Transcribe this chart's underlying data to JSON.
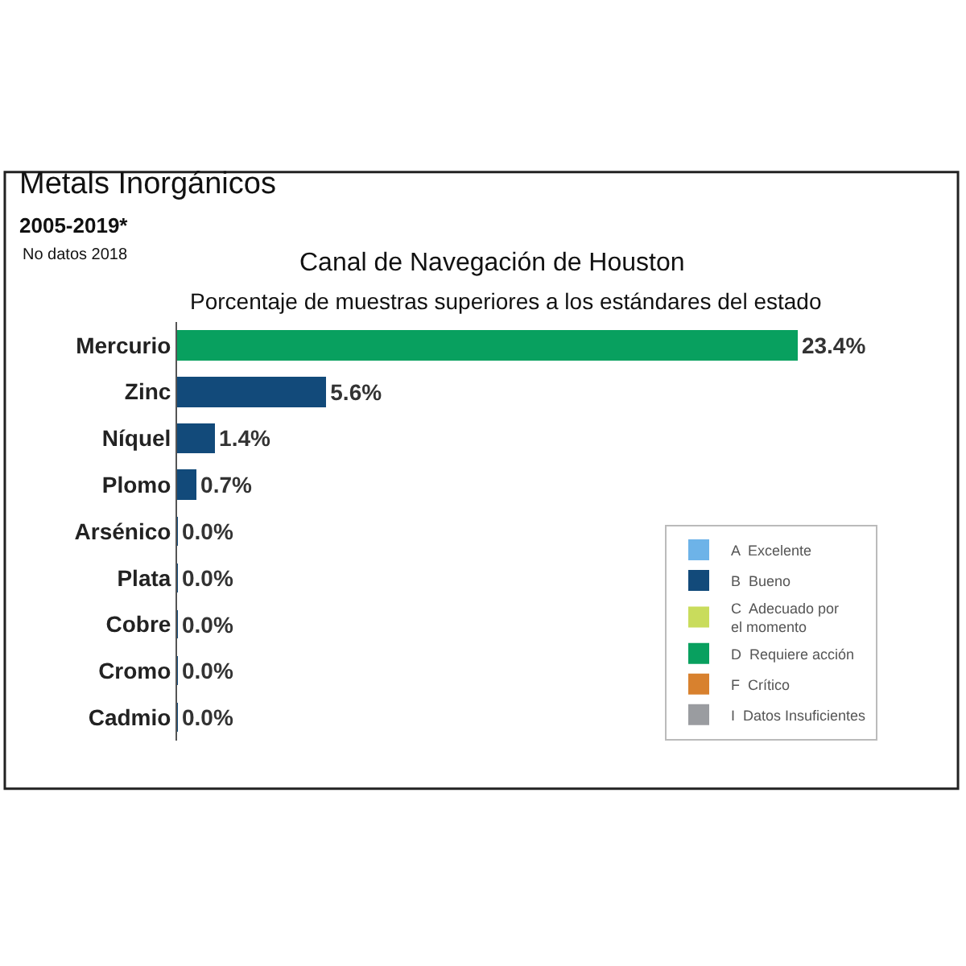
{
  "chart_data": {
    "type": "bar",
    "orientation": "horizontal",
    "stacked": true,
    "title": "Metals Inorgánicos",
    "subtitle": "2005-2019*",
    "annotations": [
      "No datos 2018",
      "Canal de Navegación de Houston",
      "Porcentaje de muestras superiores a los estándares del estado"
    ],
    "categories": [
      "Mercurio",
      "Zinc",
      "Níquel",
      "Plomo",
      "Arsénico",
      "Plata",
      "Cobre",
      "Cromo",
      "Cadmio"
    ],
    "series": [
      {
        "name": "A  Excelente",
        "color": "#6db3e8",
        "values": [
          null,
          null,
          null,
          null,
          null,
          null,
          null,
          null,
          null
        ]
      },
      {
        "name": "B  Bueno",
        "color": "#124a7a",
        "values": [
          null,
          5.6,
          1.4,
          0.7,
          0.0,
          0.0,
          0.0,
          0.0,
          0.0
        ],
        "value_labels": [
          null,
          "5.6%",
          "1.4%",
          "0.7%",
          "0.0%",
          "0.0%",
          "0.0%",
          "0.0%",
          "0.0%"
        ]
      },
      {
        "name": "C  Adecuado por\nel momento",
        "color": "#c9dc5c",
        "values": [
          null,
          null,
          null,
          null,
          null,
          null,
          null,
          null,
          null
        ]
      },
      {
        "name": "D  Requiere acción",
        "color": "#08a05f",
        "values": [
          23.4,
          null,
          null,
          null,
          null,
          null,
          null,
          null,
          null
        ],
        "value_labels": [
          "23.4%",
          null,
          null,
          null,
          null,
          null,
          null,
          null,
          null
        ]
      },
      {
        "name": "F  Crítico",
        "color": "#d8812e",
        "values": [
          null,
          null,
          null,
          null,
          null,
          null,
          null,
          null,
          null
        ]
      },
      {
        "name": "I  Datos Insuficientes",
        "color": "#9a9ca0",
        "values": [
          null,
          null,
          null,
          null,
          null,
          null,
          null,
          null,
          null
        ]
      }
    ],
    "legend": "bottom right"
  }
}
